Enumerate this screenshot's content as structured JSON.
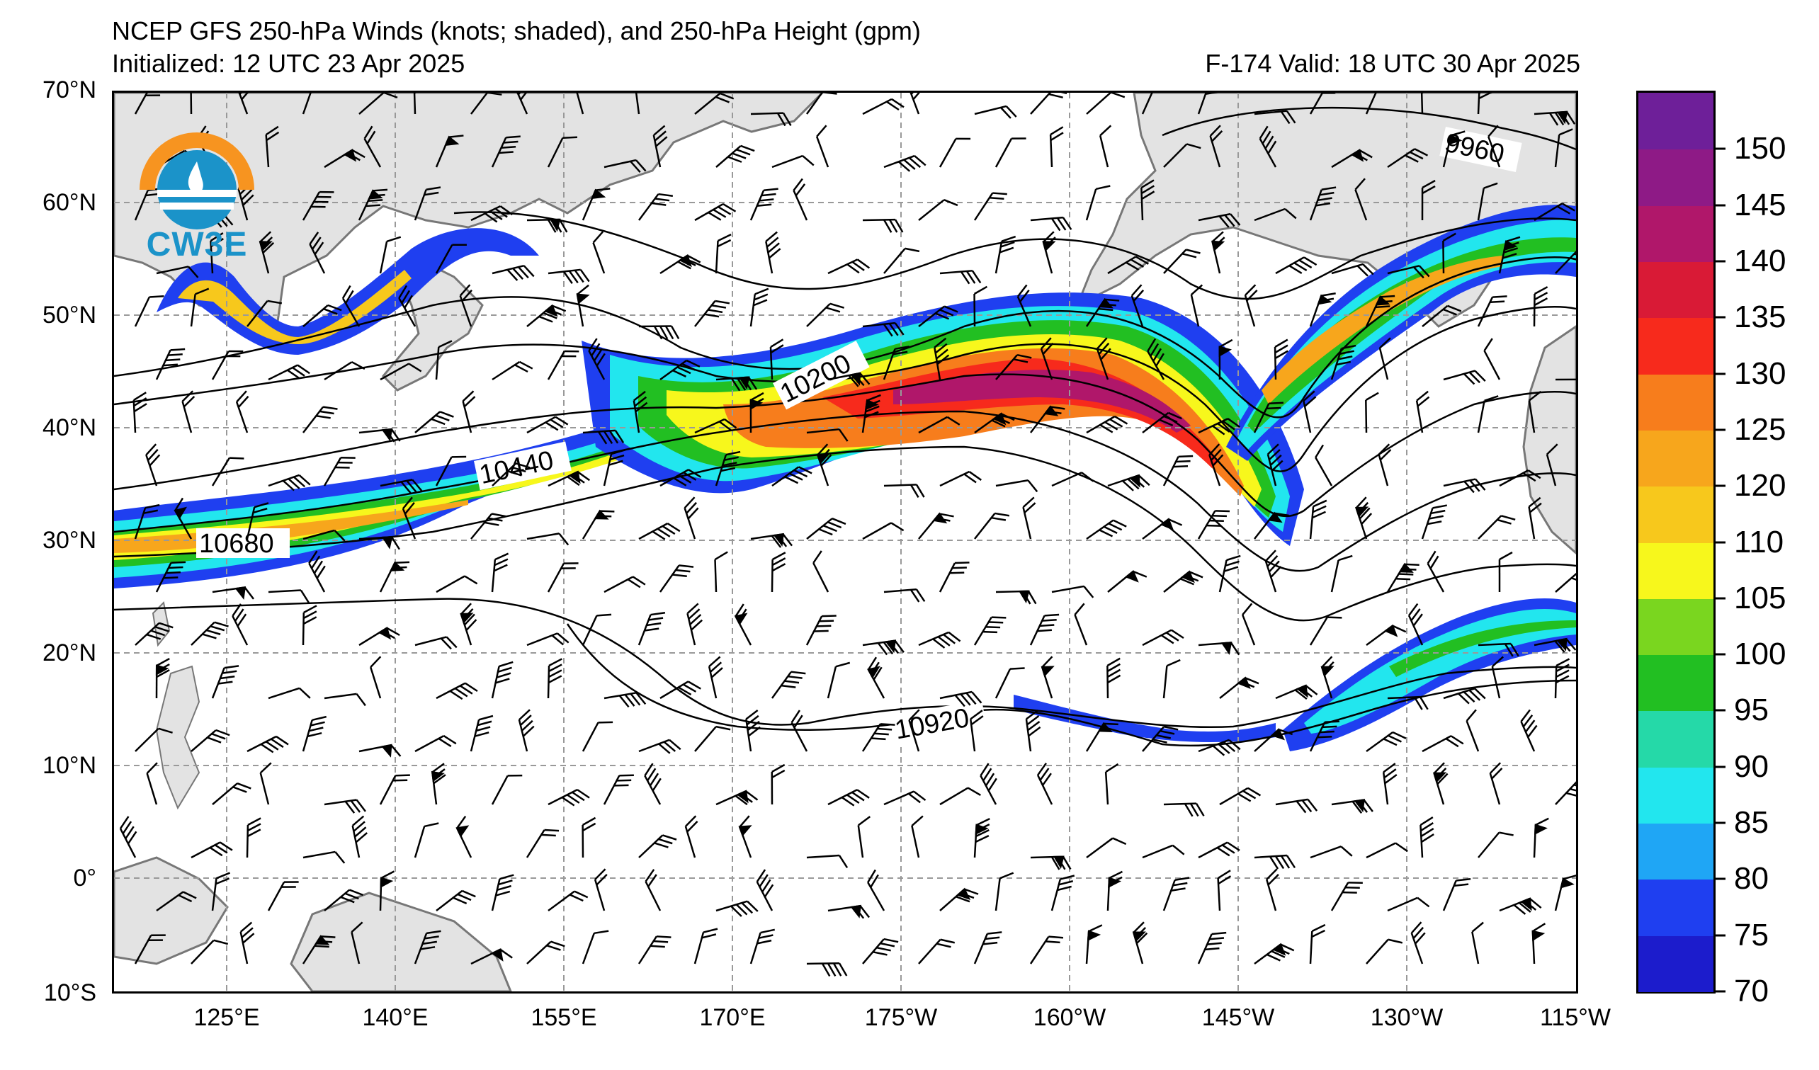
{
  "title": "NCEP GFS 250-hPa Winds (knots; shaded), and 250-hPa Height (gpm)",
  "initialized": "Initialized: 12 UTC 23 Apr 2025",
  "valid": "F-174  Valid: 18 UTC 30 Apr 2025",
  "logo_text": "CW3E",
  "lat_labels": [
    "70°N",
    "60°N",
    "50°N",
    "40°N",
    "30°N",
    "20°N",
    "10°N",
    "0°",
    "10°S"
  ],
  "lon_labels": [
    "125°E",
    "140°E",
    "155°E",
    "170°E",
    "175°W",
    "160°W",
    "145°W",
    "130°W",
    "115°W"
  ],
  "height_labels": [
    "9960",
    "10200",
    "10440",
    "10680",
    "10920"
  ],
  "colorbar": {
    "ticks": [
      "70",
      "75",
      "80",
      "85",
      "90",
      "95",
      "100",
      "105",
      "110",
      "120",
      "125",
      "130",
      "135",
      "140",
      "145",
      "150"
    ],
    "colors": [
      "#1c1ccc",
      "#1f3ff0",
      "#1fa6f5",
      "#22e6ee",
      "#25d9a8",
      "#22bf22",
      "#7ad61f",
      "#f7f71c",
      "#f7c81c",
      "#f7a61c",
      "#f77d1c",
      "#f72a1c",
      "#d91a36",
      "#b0176a",
      "#8e1a86",
      "#6e1f99"
    ]
  },
  "colors": {
    "land": "#e3e3e3",
    "coast": "#777777",
    "grid": "#999999"
  }
}
